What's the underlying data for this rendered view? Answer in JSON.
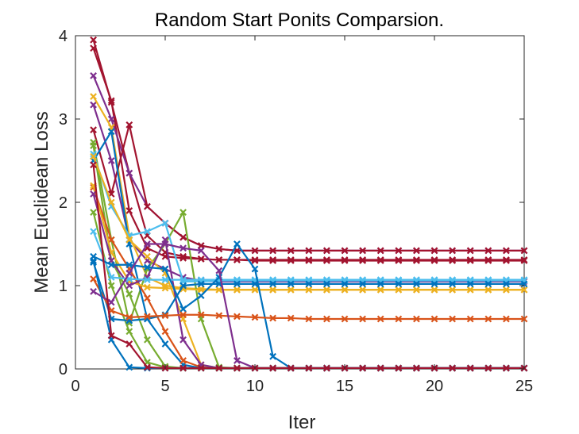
{
  "chart_data": {
    "type": "line",
    "title": "Random Start Ponits Comparsion.",
    "xlabel": "Iter",
    "ylabel": "Mean Euclidean Loss",
    "xlim": [
      0,
      25
    ],
    "ylim": [
      0,
      4
    ],
    "xticks": [
      0,
      5,
      10,
      15,
      20,
      25
    ],
    "yticks": [
      0,
      1,
      2,
      3,
      4
    ],
    "grid": false,
    "legend": "none",
    "marker": "x",
    "x": [
      1,
      2,
      3,
      4,
      5,
      6,
      7,
      8,
      9,
      10,
      11,
      12,
      13,
      14,
      15,
      16,
      17,
      18,
      19,
      20,
      21,
      22,
      23,
      24,
      25
    ],
    "series": [
      {
        "color": "#A2142F",
        "values": [
          3.95,
          3.2,
          2.35,
          1.6,
          1.4,
          1.35,
          1.32,
          1.31,
          1.31,
          1.3,
          1.3,
          1.3,
          1.3,
          1.3,
          1.3,
          1.3,
          1.3,
          1.3,
          1.3,
          1.3,
          1.3,
          1.3,
          1.3,
          1.3,
          1.3
        ]
      },
      {
        "color": "#A2142F",
        "values": [
          3.85,
          3.22,
          1.9,
          1.45,
          1.35,
          1.33,
          1.32,
          1.31,
          1.31,
          1.31,
          1.31,
          1.31,
          1.31,
          1.31,
          1.31,
          1.31,
          1.31,
          1.31,
          1.31,
          1.31,
          1.31,
          1.31,
          1.31,
          1.31,
          1.31
        ]
      },
      {
        "color": "#7E2F8E",
        "values": [
          3.52,
          3.0,
          2.35,
          1.95,
          1.75,
          1.58,
          1.48,
          1.44,
          1.42,
          1.42,
          1.42,
          1.42,
          1.42,
          1.42,
          1.42,
          1.42,
          1.42,
          1.42,
          1.42,
          1.42,
          1.42,
          1.42,
          1.42,
          1.42,
          1.42
        ]
      },
      {
        "color": "#7E2F8E",
        "values": [
          3.17,
          2.5,
          1.55,
          1.3,
          1.2,
          1.1,
          1.06,
          1.05,
          1.05,
          1.05,
          1.05,
          1.05,
          1.05,
          1.05,
          1.05,
          1.05,
          1.05,
          1.05,
          1.05,
          1.05,
          1.05,
          1.05,
          1.05,
          1.05,
          1.05
        ]
      },
      {
        "color": "#EDB120",
        "values": [
          3.27,
          2.9,
          1.6,
          1.1,
          1.0,
          0.97,
          0.96,
          0.95,
          0.95,
          0.95,
          0.95,
          0.95,
          0.95,
          0.95,
          0.95,
          0.95,
          0.95,
          0.95,
          0.95,
          0.95,
          0.95,
          0.95,
          0.95,
          0.95,
          0.95
        ]
      },
      {
        "color": "#A2142F",
        "values": [
          2.87,
          2.1,
          2.93,
          1.95,
          1.75,
          1.58,
          1.48,
          1.44,
          1.42,
          1.42,
          1.42,
          1.42,
          1.42,
          1.42,
          1.42,
          1.42,
          1.42,
          1.42,
          1.42,
          1.42,
          1.42,
          1.42,
          1.42,
          1.42,
          1.42
        ]
      },
      {
        "color": "#77AC30",
        "values": [
          2.72,
          1.55,
          0.55,
          1.2,
          1.5,
          1.88,
          0.6,
          0.02,
          0.01,
          0.01,
          0.01,
          0.01,
          0.01,
          0.01,
          0.01,
          0.01,
          0.01,
          0.01,
          0.01,
          0.01,
          0.01,
          0.01,
          0.01,
          0.01,
          0.01
        ]
      },
      {
        "color": "#77AC30",
        "values": [
          2.68,
          1.3,
          0.9,
          0.35,
          0.03,
          0.01,
          0.01,
          0.01,
          0.01,
          0.01,
          0.01,
          0.01,
          0.01,
          0.01,
          0.01,
          0.01,
          0.01,
          0.01,
          0.01,
          0.01,
          0.01,
          0.01,
          0.01,
          0.01,
          0.01
        ]
      },
      {
        "color": "#0072BD",
        "values": [
          2.5,
          2.85,
          1.5,
          0.6,
          0.3,
          0.05,
          0.01,
          0.01,
          0.01,
          0.01,
          0.01,
          0.01,
          0.01,
          0.01,
          0.01,
          0.01,
          0.01,
          0.01,
          0.01,
          0.01,
          0.01,
          0.01,
          0.01,
          0.01,
          0.01
        ]
      },
      {
        "color": "#4DBEEE",
        "values": [
          2.58,
          1.95,
          1.6,
          1.65,
          1.75,
          1.05,
          1.05,
          1.06,
          1.06,
          1.06,
          1.06,
          1.06,
          1.06,
          1.06,
          1.06,
          1.06,
          1.06,
          1.06,
          1.06,
          1.06,
          1.06,
          1.06,
          1.06,
          1.06,
          1.06
        ]
      },
      {
        "color": "#EDB120",
        "values": [
          2.55,
          2.0,
          1.55,
          1.35,
          1.15,
          0.6,
          0.05,
          0.01,
          0.01,
          0.01,
          0.01,
          0.01,
          0.01,
          0.01,
          0.01,
          0.01,
          0.01,
          0.01,
          0.01,
          0.01,
          0.01,
          0.01,
          0.01,
          0.01,
          0.01
        ]
      },
      {
        "color": "#D95319",
        "values": [
          2.18,
          1.55,
          1.2,
          0.85,
          0.45,
          0.1,
          0.02,
          0.01,
          0.01,
          0.01,
          0.01,
          0.01,
          0.01,
          0.01,
          0.01,
          0.01,
          0.01,
          0.01,
          0.01,
          0.01,
          0.01,
          0.01,
          0.01,
          0.01,
          0.01
        ]
      },
      {
        "color": "#EDB120",
        "values": [
          2.2,
          1.4,
          1.05,
          0.98,
          0.97,
          0.96,
          0.95,
          0.95,
          0.95,
          0.95,
          0.95,
          0.95,
          0.95,
          0.95,
          0.95,
          0.95,
          0.95,
          0.95,
          0.95,
          0.95,
          0.95,
          0.95,
          0.95,
          0.95,
          0.95
        ]
      },
      {
        "color": "#7E2F8E",
        "values": [
          2.1,
          1.3,
          1.0,
          1.1,
          1.55,
          0.35,
          0.05,
          0.01,
          0.01,
          0.01,
          0.01,
          0.01,
          0.01,
          0.01,
          0.01,
          0.01,
          0.01,
          0.01,
          0.01,
          0.01,
          0.01,
          0.01,
          0.01,
          0.01,
          0.01
        ]
      },
      {
        "color": "#77AC30",
        "values": [
          1.88,
          1.0,
          0.45,
          0.08,
          0.02,
          0.01,
          0.01,
          0.01,
          0.01,
          0.01,
          0.01,
          0.01,
          0.01,
          0.01,
          0.01,
          0.01,
          0.01,
          0.01,
          0.01,
          0.01,
          0.01,
          0.01,
          0.01,
          0.01,
          0.01
        ]
      },
      {
        "color": "#4DBEEE",
        "values": [
          1.65,
          1.1,
          1.08,
          1.07,
          1.07,
          1.07,
          1.07,
          1.07,
          1.07,
          1.07,
          1.07,
          1.07,
          1.07,
          1.07,
          1.07,
          1.07,
          1.07,
          1.07,
          1.07,
          1.07,
          1.07,
          1.07,
          1.07,
          1.07,
          1.07
        ]
      },
      {
        "color": "#0072BD",
        "values": [
          1.35,
          1.25,
          1.25,
          1.22,
          1.2,
          0.72,
          0.88,
          1.1,
          1.5,
          1.2,
          0.15,
          0.01,
          0.01,
          0.01,
          0.01,
          0.01,
          0.01,
          0.01,
          0.01,
          0.01,
          0.01,
          0.01,
          0.01,
          0.01,
          0.01
        ]
      },
      {
        "color": "#0072BD",
        "values": [
          1.28,
          0.6,
          0.58,
          0.6,
          0.65,
          1.0,
          1.02,
          1.02,
          1.02,
          1.02,
          1.02,
          1.02,
          1.02,
          1.02,
          1.02,
          1.02,
          1.02,
          1.02,
          1.02,
          1.02,
          1.02,
          1.02,
          1.02,
          1.02,
          1.02
        ]
      },
      {
        "color": "#D95319",
        "values": [
          1.08,
          0.7,
          0.62,
          0.63,
          0.64,
          0.65,
          0.65,
          0.64,
          0.63,
          0.62,
          0.61,
          0.61,
          0.6,
          0.6,
          0.6,
          0.6,
          0.6,
          0.6,
          0.6,
          0.6,
          0.6,
          0.6,
          0.6,
          0.6,
          0.6
        ]
      },
      {
        "color": "#7E2F8E",
        "values": [
          0.93,
          0.8,
          1.15,
          1.5,
          1.5,
          1.45,
          1.42,
          1.18,
          0.1,
          0.01,
          0.01,
          0.01,
          0.01,
          0.01,
          0.01,
          0.01,
          0.01,
          0.01,
          0.01,
          0.01,
          0.01,
          0.01,
          0.01,
          0.01,
          0.01
        ]
      },
      {
        "color": "#0072BD",
        "values": [
          1.3,
          0.35,
          0.02,
          0.01,
          0.01,
          0.01,
          0.01,
          0.01,
          0.01,
          0.01,
          0.01,
          0.01,
          0.01,
          0.01,
          0.01,
          0.01,
          0.01,
          0.01,
          0.01,
          0.01,
          0.01,
          0.01,
          0.01,
          0.01,
          0.01
        ]
      },
      {
        "color": "#A2142F",
        "values": [
          2.45,
          0.4,
          0.3,
          0.02,
          0.01,
          0.01,
          0.01,
          0.01,
          0.01,
          0.01,
          0.01,
          0.01,
          0.01,
          0.01,
          0.01,
          0.01,
          0.01,
          0.01,
          0.01,
          0.01,
          0.01,
          0.01,
          0.01,
          0.01,
          0.01
        ]
      }
    ]
  }
}
